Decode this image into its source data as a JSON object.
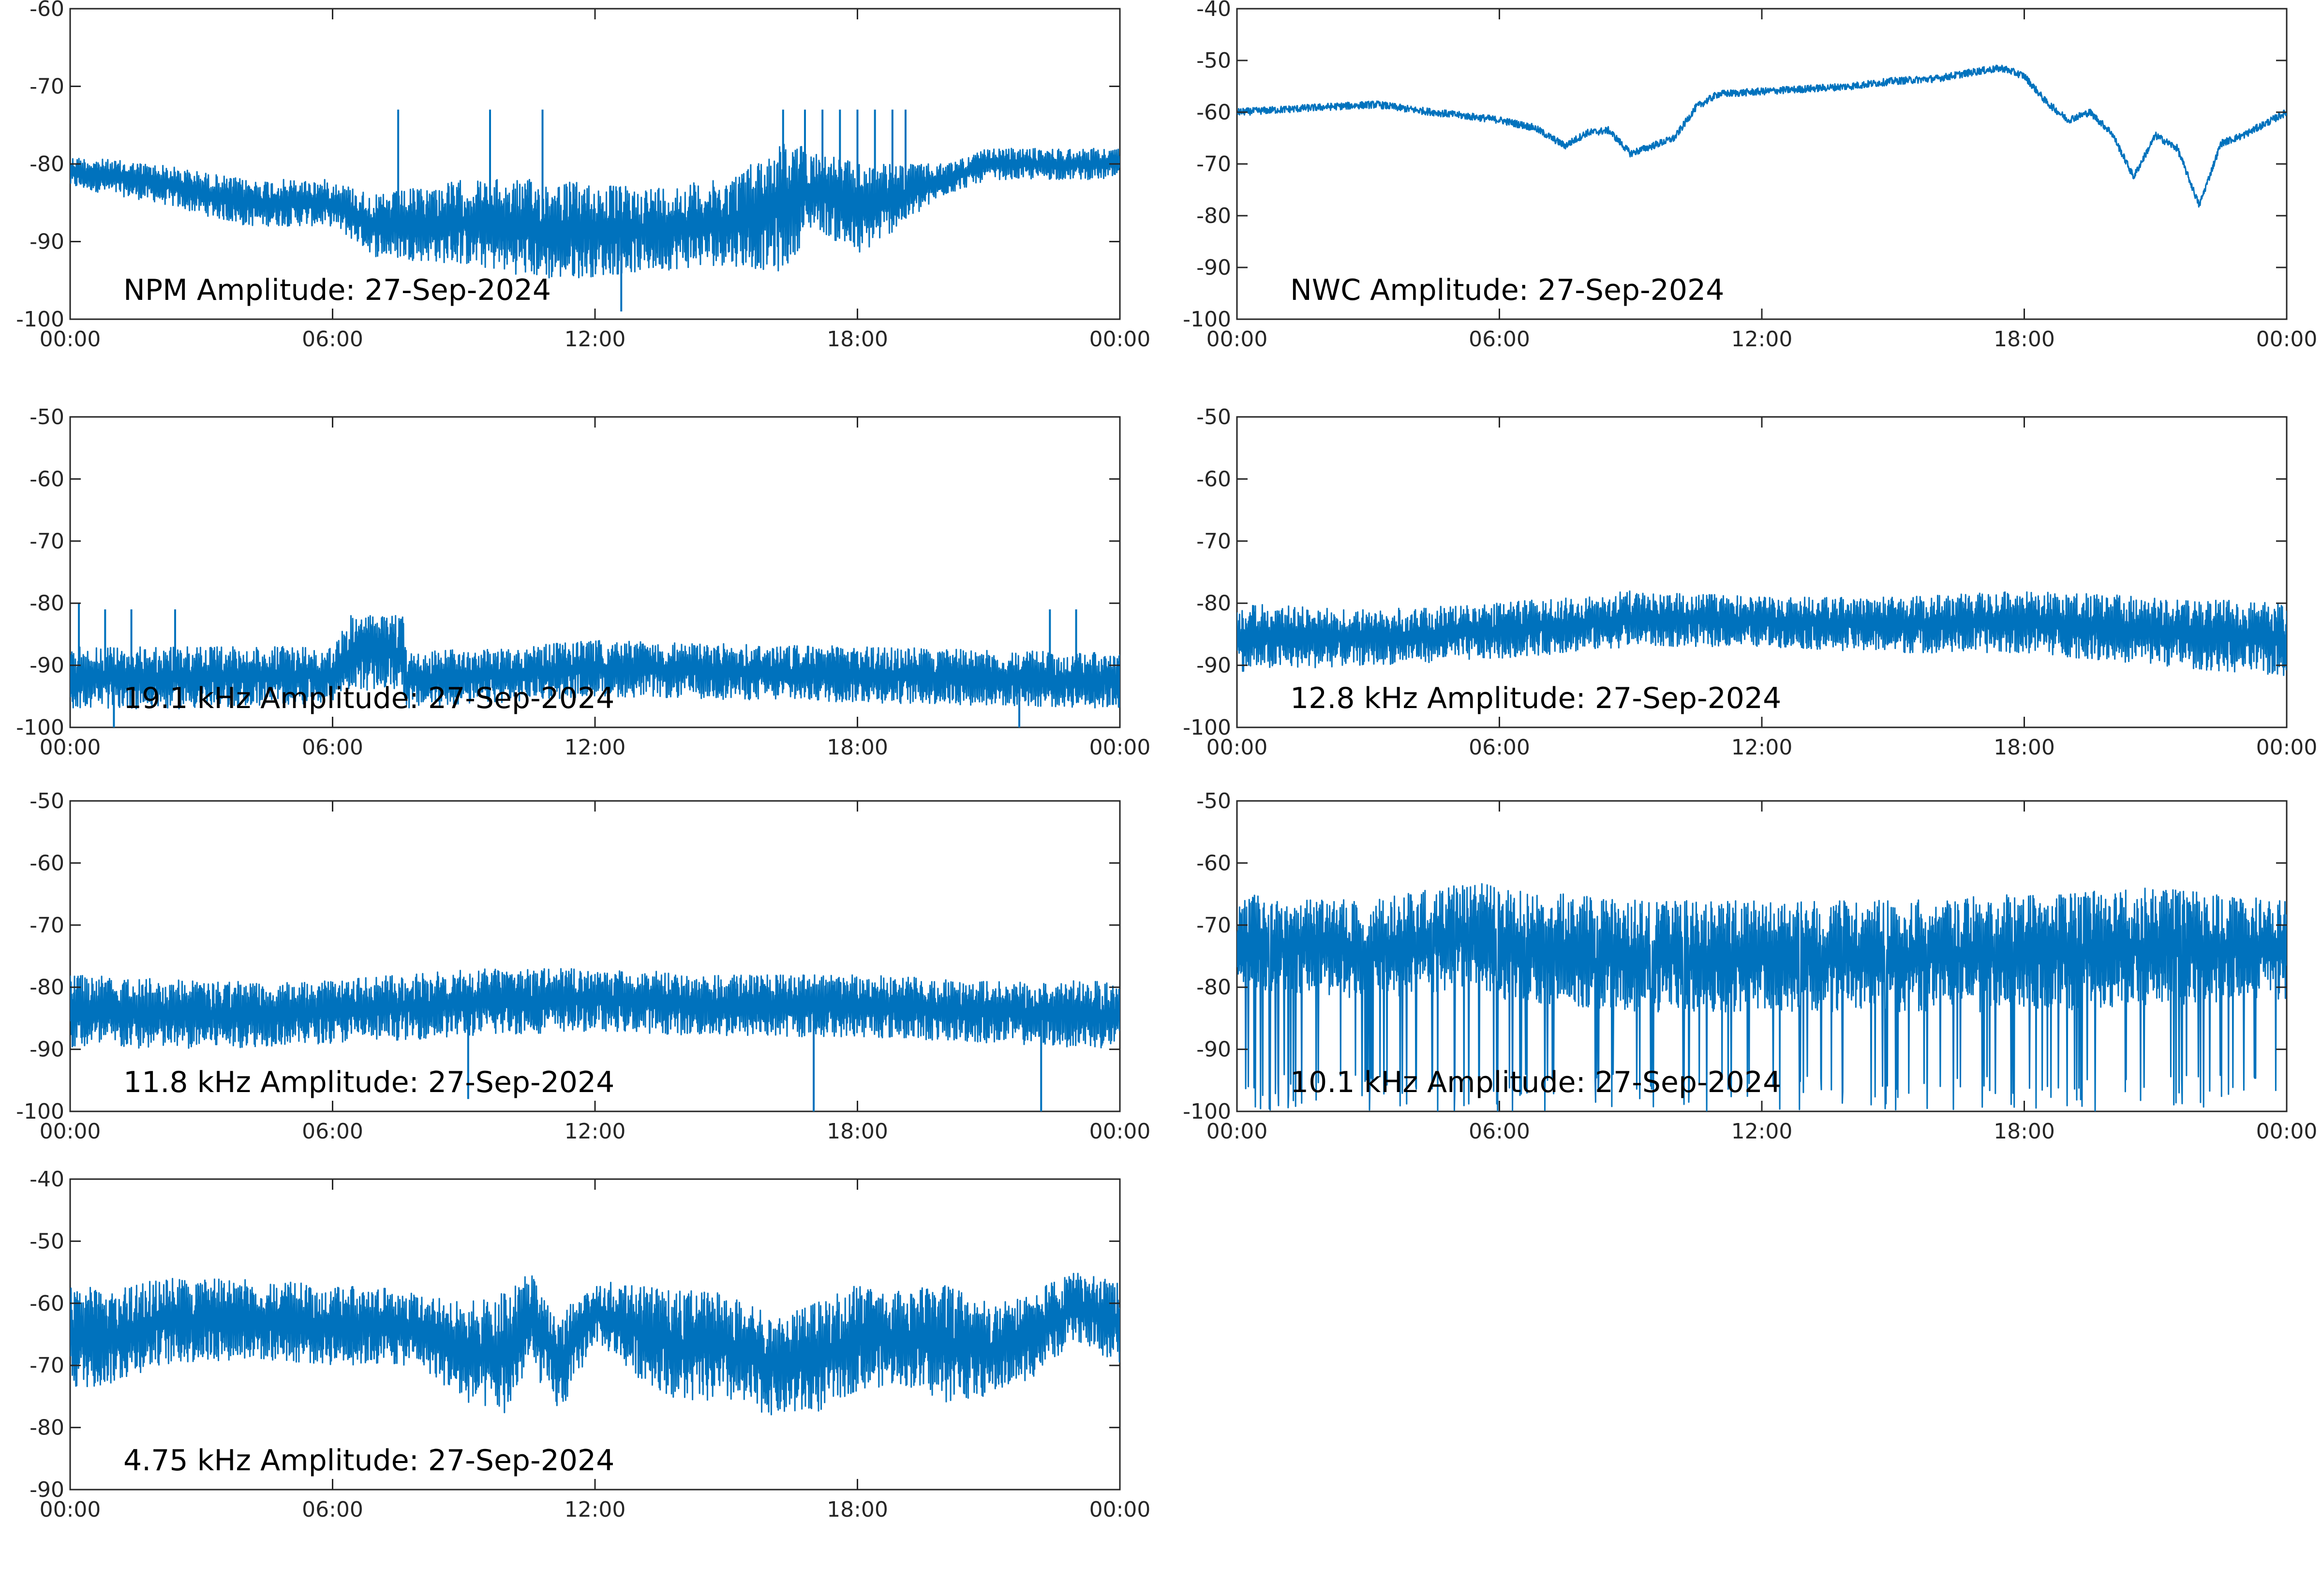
{
  "chart_data": [
    {
      "id": "npm",
      "type": "line",
      "title": "NPM Amplitude: 27-Sep-2024",
      "xticks": [
        "00:00",
        "06:00",
        "12:00",
        "18:00",
        "00:00"
      ],
      "xlim_hours": [
        0,
        24
      ],
      "ylim": [
        -100,
        -60
      ],
      "yticks": [
        -60,
        -70,
        -80,
        -90,
        -100
      ],
      "series": [
        {
          "color": "#0072bd",
          "envelope": {
            "hours": [
              0,
              2,
              4,
              6,
              7,
              9,
              11,
              13,
              15,
              16.3,
              17,
              18,
              19,
              20,
              21,
              24
            ],
            "upper": [
              -79,
              -80,
              -82,
              -82,
              -84,
              -82,
              -82,
              -83,
              -82,
              -77,
              -78,
              -80,
              -80,
              -80,
              -78,
              -78
            ],
            "lower": [
              -83,
              -85,
              -88,
              -88,
              -92,
              -93,
              -95,
              -94,
              -93,
              -94,
              -88,
              -92,
              -88,
              -84,
              -82,
              -82
            ]
          },
          "spikes": [
            {
              "hour": 7.5,
              "value": -73
            },
            {
              "hour": 9.6,
              "value": -73
            },
            {
              "hour": 10.8,
              "value": -73
            },
            {
              "hour": 16.3,
              "value": -73
            },
            {
              "hour": 16.8,
              "value": -73
            },
            {
              "hour": 17.2,
              "value": -73
            },
            {
              "hour": 17.6,
              "value": -73
            },
            {
              "hour": 18.0,
              "value": -73
            },
            {
              "hour": 18.4,
              "value": -73
            },
            {
              "hour": 18.8,
              "value": -73
            },
            {
              "hour": 19.1,
              "value": -73
            },
            {
              "hour": 12.6,
              "value": -99
            }
          ]
        }
      ]
    },
    {
      "id": "nwc",
      "type": "line",
      "title": "NWC Amplitude: 27-Sep-2024",
      "xticks": [
        "00:00",
        "06:00",
        "12:00",
        "18:00",
        "00:00"
      ],
      "xlim_hours": [
        0,
        24
      ],
      "ylim": [
        -100,
        -40
      ],
      "yticks": [
        -40,
        -50,
        -60,
        -70,
        -80,
        -90,
        -100
      ],
      "series": [
        {
          "color": "#0072bd",
          "points": {
            "hours": [
              0,
              1,
              2,
              3.2,
              4,
              5,
              6,
              6.8,
              7.5,
              8,
              8.5,
              9,
              9.5,
              10,
              10.5,
              11,
              12,
              13,
              14,
              15,
              16,
              17,
              17.5,
              18,
              18.5,
              19,
              19.5,
              20,
              20.5,
              21,
              21.5,
              22,
              22.5,
              23,
              24
            ],
            "values": [
              -60,
              -59.5,
              -59,
              -58.5,
              -59.5,
              -60.5,
              -61.5,
              -63,
              -66.5,
              -64,
              -63.5,
              -68,
              -66.5,
              -65,
              -59,
              -56.5,
              -56,
              -55.5,
              -55,
              -54,
              -53.5,
              -52,
              -51.5,
              -53,
              -58,
              -61.5,
              -60,
              -64,
              -72.5,
              -64.5,
              -67,
              -78,
              -66,
              -64.5,
              -60
            ]
          },
          "noise": 0.7
        }
      ]
    },
    {
      "id": "k19_1",
      "type": "line",
      "title": "19.1 kHz Amplitude: 27-Sep-2024",
      "xticks": [
        "00:00",
        "06:00",
        "12:00",
        "18:00",
        "00:00"
      ],
      "xlim_hours": [
        0,
        24
      ],
      "ylim": [
        -100,
        -50
      ],
      "yticks": [
        -50,
        -60,
        -70,
        -80,
        -90,
        -100
      ],
      "series": [
        {
          "color": "#0072bd",
          "envelope": {
            "hours": [
              0,
              3,
              6,
              6.4,
              7.6,
              7.7,
              12,
              18,
              24
            ],
            "upper": [
              -87,
              -87,
              -87,
              -82,
              -82,
              -88,
              -86,
              -87,
              -88
            ],
            "lower": [
              -97,
              -97,
              -96,
              -94,
              -94,
              -97,
              -95,
              -96,
              -97
            ]
          },
          "spikes": [
            {
              "hour": 0.2,
              "value": -80
            },
            {
              "hour": 0.8,
              "value": -81
            },
            {
              "hour": 1.4,
              "value": -81
            },
            {
              "hour": 2.4,
              "value": -81
            },
            {
              "hour": 22.4,
              "value": -81
            },
            {
              "hour": 23.0,
              "value": -81
            },
            {
              "hour": 1.0,
              "value": -100
            },
            {
              "hour": 21.7,
              "value": -100
            }
          ]
        }
      ]
    },
    {
      "id": "k12_8",
      "type": "line",
      "title": "12.8 kHz Amplitude: 27-Sep-2024",
      "xticks": [
        "00:00",
        "06:00",
        "12:00",
        "18:00",
        "00:00"
      ],
      "xlim_hours": [
        0,
        24
      ],
      "ylim": [
        -100,
        -50
      ],
      "yticks": [
        -50,
        -60,
        -70,
        -80,
        -90,
        -100
      ],
      "series": [
        {
          "color": "#0072bd",
          "envelope": {
            "hours": [
              0,
              3,
              6,
              9,
              12,
              15,
              18,
              21,
              24
            ],
            "upper": [
              -80,
              -81,
              -80,
              -78,
              -79,
              -79,
              -78,
              -79,
              -80
            ],
            "lower": [
              -91,
              -90,
              -89,
              -87,
              -87,
              -88,
              -88,
              -90,
              -92
            ]
          }
        }
      ]
    },
    {
      "id": "k11_8",
      "type": "line",
      "title": "11.8 kHz Amplitude: 27-Sep-2024",
      "xticks": [
        "00:00",
        "06:00",
        "12:00",
        "18:00",
        "00:00"
      ],
      "xlim_hours": [
        0,
        24
      ],
      "ylim": [
        -100,
        -50
      ],
      "yticks": [
        -50,
        -60,
        -70,
        -80,
        -90,
        -100
      ],
      "series": [
        {
          "color": "#0072bd",
          "envelope": {
            "hours": [
              0,
              3,
              6,
              9,
              12,
              15,
              18,
              21,
              24
            ],
            "upper": [
              -78,
              -79,
              -79,
              -77,
              -77,
              -78,
              -78,
              -79,
              -79
            ],
            "lower": [
              -90,
              -90,
              -89,
              -88,
              -87,
              -88,
              -88,
              -89,
              -90
            ]
          },
          "spikes": [
            {
              "hour": 17.0,
              "value": -100
            },
            {
              "hour": 22.2,
              "value": -100
            },
            {
              "hour": 9.1,
              "value": -98
            }
          ]
        }
      ]
    },
    {
      "id": "k10_1",
      "type": "line",
      "title": "10.1 kHz Amplitude: 27-Sep-2024",
      "xticks": [
        "00:00",
        "06:00",
        "12:00",
        "18:00",
        "00:00"
      ],
      "xlim_hours": [
        0,
        24
      ],
      "ylim": [
        -100,
        -50
      ],
      "yticks": [
        -50,
        -60,
        -70,
        -80,
        -90,
        -100
      ],
      "series": [
        {
          "color": "#0072bd",
          "envelope": {
            "hours": [
              0,
              3,
              5.5,
              6,
              9,
              12,
              15,
              18,
              21,
              24
            ],
            "upper": [
              -65,
              -66,
              -63,
              -64,
              -66,
              -66,
              -66,
              -65,
              -64,
              -66
            ],
            "lower": [
              -80,
              -82,
              -80,
              -82,
              -84,
              -84,
              -84,
              -84,
              -83,
              -82
            ]
          },
          "dropouts_per_hour": 7,
          "dropout_min": -100
        }
      ]
    },
    {
      "id": "k4_75",
      "type": "line",
      "title": "4.75 kHz Amplitude: 27-Sep-2024",
      "xticks": [
        "00:00",
        "06:00",
        "12:00",
        "18:00",
        "00:00"
      ],
      "xlim_hours": [
        0,
        24
      ],
      "ylim": [
        -90,
        -40
      ],
      "yticks": [
        -40,
        -50,
        -60,
        -70,
        -80,
        -90
      ],
      "series": [
        {
          "color": "#0072bd",
          "envelope": {
            "hours": [
              0,
              1,
              2,
              4,
              6,
              8,
              9,
              10,
              10.5,
              11.2,
              12,
              13,
              14,
              15,
              16,
              17,
              18,
              19,
              20,
              21,
              22,
              23,
              24
            ],
            "upper": [
              -57,
              -58,
              -56,
              -56,
              -57,
              -58,
              -60,
              -58,
              -55,
              -62,
              -56,
              -57,
              -58,
              -58,
              -62,
              -60,
              -57,
              -58,
              -57,
              -60,
              -58,
              -55,
              -56
            ],
            "lower": [
              -74,
              -73,
              -70,
              -69,
              -70,
              -70,
              -76,
              -78,
              -70,
              -78,
              -66,
              -72,
              -76,
              -76,
              -78,
              -78,
              -74,
              -73,
              -76,
              -75,
              -72,
              -66,
              -70
            ]
          }
        }
      ]
    }
  ]
}
